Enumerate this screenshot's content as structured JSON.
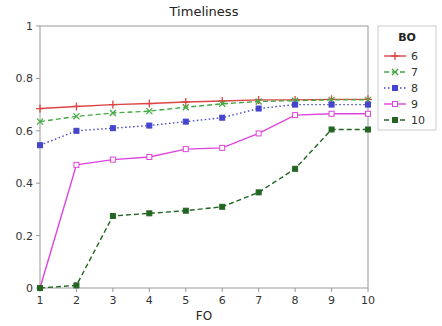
{
  "chart_data": {
    "type": "line",
    "title": "Timeliness",
    "x_label": "FO",
    "x": [
      1,
      2,
      3,
      4,
      5,
      6,
      7,
      8,
      9,
      10
    ],
    "xlim": [
      1,
      10
    ],
    "ylim": [
      0,
      1
    ],
    "xticks": [
      1,
      2,
      3,
      4,
      5,
      6,
      7,
      8,
      9,
      10
    ],
    "yticks": [
      0,
      0.2,
      0.4,
      0.6,
      0.8,
      1
    ],
    "grid": false,
    "legend": "right",
    "legend_title": "BO",
    "series": [
      {
        "name": "6",
        "color": "#dd4444",
        "line_style": "solid",
        "marker": "plus",
        "values": [
          0.685,
          0.693,
          0.7,
          0.704,
          0.71,
          0.714,
          0.718,
          0.718,
          0.72,
          0.72
        ]
      },
      {
        "name": "7",
        "color": "#44aa44",
        "line_style": "dashed",
        "marker": "x",
        "values": [
          0.635,
          0.655,
          0.668,
          0.675,
          0.69,
          0.703,
          0.712,
          0.715,
          0.718,
          0.718
        ]
      },
      {
        "name": "8",
        "color": "#4444cc",
        "line_style": "dotted",
        "marker": "square",
        "values": [
          0.545,
          0.6,
          0.61,
          0.62,
          0.635,
          0.65,
          0.685,
          0.7,
          0.7,
          0.7
        ]
      },
      {
        "name": "9",
        "color": "#dd44dd",
        "line_style": "solid",
        "marker": "open-square",
        "values": [
          0.0,
          0.47,
          0.49,
          0.5,
          0.53,
          0.535,
          0.59,
          0.66,
          0.665,
          0.665
        ]
      },
      {
        "name": "10",
        "color": "#226622",
        "line_style": "dashed",
        "marker": "square",
        "values": [
          0.0,
          0.01,
          0.275,
          0.285,
          0.295,
          0.31,
          0.365,
          0.455,
          0.605,
          0.605
        ]
      }
    ]
  }
}
